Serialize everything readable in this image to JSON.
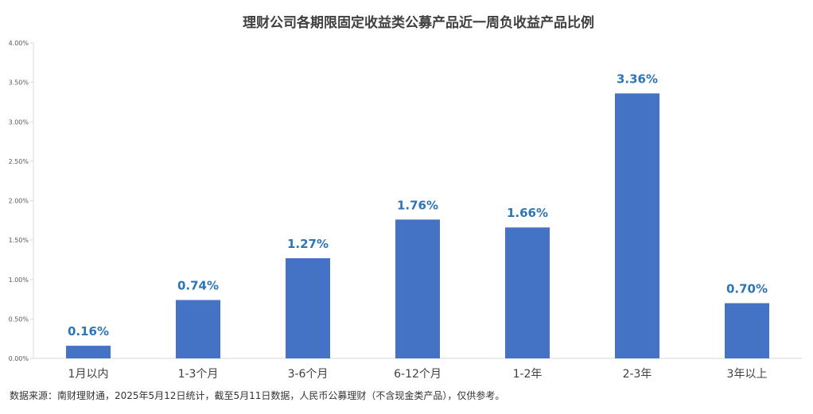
{
  "chart_data": {
    "type": "bar",
    "title": "理财公司各期限固定收益类公募产品近一周负收益产品比例",
    "categories": [
      "1月以内",
      "1-3个月",
      "3-6个月",
      "6-12个月",
      "1-2年",
      "2-3年",
      "3年以上"
    ],
    "values": [
      0.16,
      0.74,
      1.27,
      1.76,
      1.66,
      3.36,
      0.7
    ],
    "data_labels": [
      "0.16%",
      "0.74%",
      "1.27%",
      "1.76%",
      "1.66%",
      "3.36%",
      "0.70%"
    ],
    "yticks": [
      0,
      0.5,
      1.0,
      1.5,
      2.0,
      2.5,
      3.0,
      3.5,
      4.0
    ],
    "ytick_labels": [
      "0.00%",
      "0.50%",
      "1.00%",
      "1.50%",
      "2.00%",
      "2.50%",
      "3.00%",
      "3.50%",
      "4.00%"
    ],
    "ylim": [
      0,
      4.0
    ],
    "xlabel": "",
    "ylabel": "",
    "grid": false,
    "legend": "none",
    "colors": {
      "bar": "#4472C4",
      "data_label": "#2E75B6",
      "axis": "#D9D9D9"
    }
  },
  "footnote": "数据来源：南财理财通，2025年5月12日统计，截至5月11日数据，人民币公募理财（不含现金类产品），仅供参考。"
}
